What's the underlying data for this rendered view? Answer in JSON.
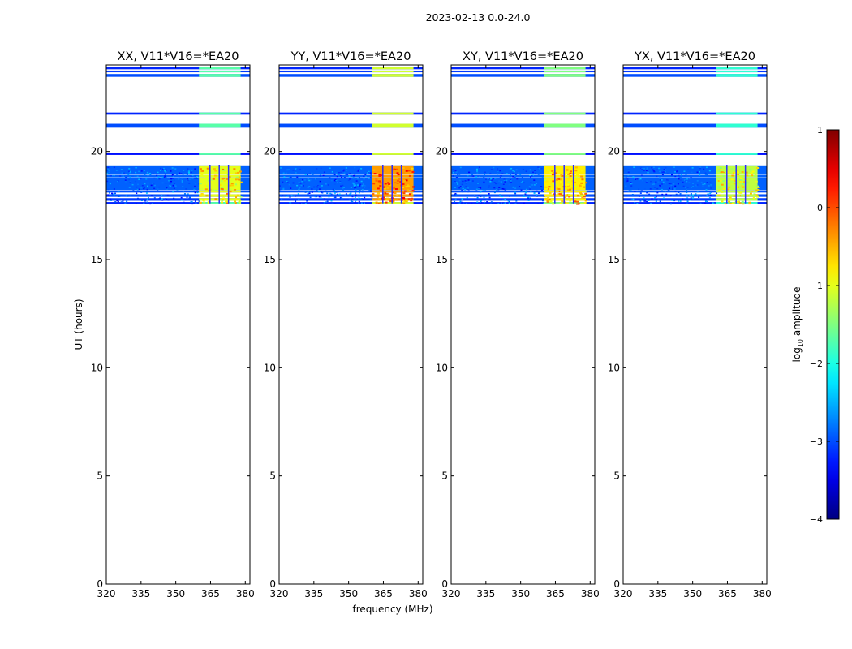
{
  "suptitle": "2023-02-13 0.0-24.0",
  "chart_data": {
    "type": "heatmap",
    "xlabel": "frequency (MHz)",
    "ylabel": "UT (hours)",
    "xlim": [
      320,
      382
    ],
    "ylim": [
      0,
      24
    ],
    "xticks": [
      320,
      335,
      350,
      365,
      380
    ],
    "yticks": [
      0,
      5,
      10,
      15,
      20
    ],
    "band_freq_range": [
      320,
      382
    ],
    "bright_freq_range": [
      360,
      378
    ],
    "bright_gaps_mhz": [
      364.5,
      368.5,
      372.5
    ],
    "dense_block_hours": [
      17.6,
      19.3
    ],
    "rows": [
      {
        "t0": 17.55,
        "t1": 17.66,
        "level": -3.2
      },
      {
        "t0": 17.72,
        "t1": 17.84,
        "level": -3.1
      },
      {
        "t0": 17.9,
        "t1": 18.02,
        "level": -3.0
      },
      {
        "t0": 18.1,
        "t1": 18.2,
        "level": -3.0
      },
      {
        "t0": 18.22,
        "t1": 18.75,
        "level": -2.9
      },
      {
        "t0": 18.8,
        "t1": 18.92,
        "level": -2.9
      },
      {
        "t0": 18.95,
        "t1": 19.32,
        "level": -2.9
      },
      {
        "t0": 19.84,
        "t1": 19.92,
        "level": -3.3
      },
      {
        "t0": 21.1,
        "t1": 21.28,
        "level": -3.0
      },
      {
        "t0": 21.7,
        "t1": 21.8,
        "level": -3.2
      },
      {
        "t0": 23.45,
        "t1": 23.58,
        "level": -3.0
      },
      {
        "t0": 23.66,
        "t1": 23.74,
        "level": -3.1
      },
      {
        "t0": 23.8,
        "t1": 23.9,
        "level": -3.2
      }
    ],
    "panels": [
      {
        "title": "XX, V11*V16=*EA20",
        "bright_level": -1.0
      },
      {
        "title": "YY, V11*V16=*EA20",
        "bright_level": -0.4
      },
      {
        "title": "XY, V11*V16=*EA20",
        "bright_level": -0.8
      },
      {
        "title": "YX, V11*V16=*EA20",
        "bright_level": -1.2
      }
    ],
    "colorbar": {
      "label_prefix": "log",
      "label_sub": "10",
      "label_suffix": " amplitude",
      "range": [
        -4,
        1
      ],
      "ticks": [
        {
          "value": 1,
          "label": "1"
        },
        {
          "value": 0,
          "label": "0"
        },
        {
          "value": -1,
          "label": "−1"
        },
        {
          "value": -2,
          "label": "−2"
        },
        {
          "value": -3,
          "label": "−3"
        },
        {
          "value": -4,
          "label": "−4"
        }
      ]
    }
  }
}
